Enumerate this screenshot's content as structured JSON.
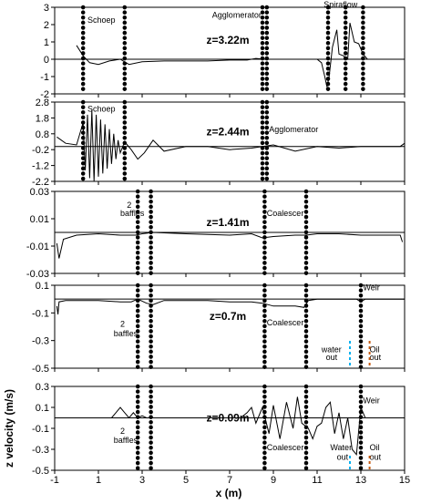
{
  "chart_data": {
    "type": "line",
    "xlabel": "x (m)",
    "ylabel": "z velocity (m/s)",
    "xlim": [
      -1,
      15
    ],
    "xticks": [
      "-1",
      "1",
      "3",
      "5",
      "7",
      "9",
      "11",
      "13",
      "15"
    ],
    "panels": [
      {
        "label": "z=3.22m",
        "ylim": [
          -2,
          3
        ],
        "yticks": [
          "-2",
          "-1",
          "0",
          "1",
          "2",
          "3"
        ],
        "dotted_lines": [
          0.3,
          2.2,
          8.5,
          8.7,
          11.5,
          12.3,
          13.1
        ],
        "annotations": [
          {
            "text": "Schoep",
            "x": 0.5,
            "y": 2.1
          },
          {
            "text": "Agglomerator",
            "x": 6.2,
            "y": 2.4
          },
          {
            "text": "Spiraflow",
            "x": 11.3,
            "y": 3.0
          }
        ],
        "series": [
          {
            "x": [
              0.0,
              0.3,
              0.6,
              1.0,
              1.5,
              2.0,
              2.4,
              3.0,
              4.0,
              5.0,
              6.0,
              7.0,
              7.8,
              8.2,
              8.6,
              9.0,
              10.0,
              11.0,
              11.2,
              11.35,
              11.45,
              11.55,
              11.7,
              11.9,
              12.0,
              12.2,
              12.4,
              12.5,
              12.7,
              12.9,
              13.1,
              13.3
            ],
            "y": [
              0.8,
              0.2,
              -0.2,
              -0.3,
              -0.1,
              0.0,
              -0.3,
              -0.15,
              -0.1,
              -0.1,
              -0.1,
              -0.05,
              -0.05,
              0.05,
              0.0,
              0.0,
              0.0,
              0.0,
              -0.2,
              -1.0,
              -1.6,
              -1.0,
              0.7,
              1.7,
              0.3,
              0.2,
              0.0,
              2.1,
              1.0,
              0.9,
              0.3,
              0.0
            ]
          }
        ]
      },
      {
        "label": "z=2.44m",
        "ylim": [
          -2.2,
          2.8
        ],
        "yticks": [
          "-2.2",
          "-1.2",
          "-0.2",
          "0.8",
          "1.8",
          "2.8"
        ],
        "dotted_lines": [
          0.3,
          2.2,
          8.5,
          8.7
        ],
        "annotations": [
          {
            "text": "Schoep",
            "x": 0.5,
            "y": 2.2
          },
          {
            "text": "Agglomerator",
            "x": 8.8,
            "y": 0.9
          }
        ],
        "series": [
          {
            "x": [
              -0.9,
              -0.5,
              0.0,
              0.3,
              0.4,
              0.5,
              0.6,
              0.7,
              0.8,
              0.9,
              1.0,
              1.1,
              1.2,
              1.3,
              1.4,
              1.5,
              1.6,
              1.7,
              1.8,
              1.9,
              2.0,
              2.2,
              2.5,
              2.8,
              3.1,
              3.5,
              4.0,
              5.0,
              6.0,
              7.0,
              8.0,
              9.0,
              10.0,
              11.0,
              12.0,
              13.0,
              14.0,
              14.8,
              15.0
            ],
            "y": [
              0.6,
              0.2,
              0.1,
              1.5,
              -1.5,
              2.0,
              -2.0,
              2.3,
              -2.2,
              2.0,
              -1.9,
              1.7,
              -1.7,
              1.4,
              -1.4,
              1.1,
              -1.1,
              0.8,
              -0.8,
              0.4,
              -0.4,
              0.3,
              -0.2,
              -0.8,
              -0.4,
              0.4,
              -0.3,
              0.0,
              0.0,
              -0.2,
              -0.1,
              0.1,
              -0.3,
              0.0,
              -0.1,
              0.0,
              0.0,
              0.0,
              0.2
            ]
          }
        ]
      },
      {
        "label": "z=1.41m",
        "ylim": [
          -0.03,
          0.03
        ],
        "yticks": [
          "-0.03",
          "-0.01",
          "0.01",
          "0.03"
        ],
        "dotted_lines": [
          2.8,
          3.4,
          8.6,
          10.5
        ],
        "annotations": [
          {
            "text": "2",
            "x": 2.3,
            "y": 0.018
          },
          {
            "text": "baffles",
            "x": 2.0,
            "y": 0.012
          },
          {
            "text": "Coalescer",
            "x": 8.7,
            "y": 0.012
          }
        ],
        "series": [
          {
            "x": [
              -0.9,
              -0.8,
              -0.6,
              0.0,
              1.0,
              2.0,
              2.7,
              3.0,
              3.5,
              5.0,
              7.0,
              8.0,
              8.5,
              9.0,
              10.0,
              10.5,
              11.0,
              12.0,
              13.0,
              14.0,
              14.8,
              14.9
            ],
            "y": [
              -0.008,
              -0.019,
              -0.005,
              -0.002,
              -0.001,
              -0.002,
              -0.002,
              -0.001,
              0.0,
              -0.001,
              -0.002,
              -0.001,
              -0.004,
              -0.003,
              -0.002,
              -0.002,
              -0.001,
              -0.001,
              -0.002,
              -0.002,
              -0.002,
              -0.007
            ]
          }
        ]
      },
      {
        "label": "z=0.7m",
        "ylim": [
          -0.5,
          0.1
        ],
        "yticks": [
          "-0.5",
          "-0.3",
          "-0.1",
          "0.1"
        ],
        "dotted_lines": [
          2.8,
          3.4,
          8.6,
          10.5,
          13.0
        ],
        "annotations": [
          {
            "text": "2",
            "x": 2.0,
            "y": -0.2
          },
          {
            "text": "baffles",
            "x": 1.7,
            "y": -0.27
          },
          {
            "text": "Coalescer",
            "x": 8.7,
            "y": -0.19
          },
          {
            "text": "Weir",
            "x": 13.1,
            "y": 0.065
          },
          {
            "text": "water",
            "x": 11.2,
            "y": -0.385
          },
          {
            "text": "out",
            "x": 11.4,
            "y": -0.44
          },
          {
            "text": "Oil",
            "x": 13.4,
            "y": -0.385
          },
          {
            "text": "out",
            "x": 13.4,
            "y": -0.44
          }
        ],
        "series": [
          {
            "x": [
              -0.9,
              -0.85,
              -0.8,
              -0.5,
              0.0,
              1.0,
              2.0,
              2.5,
              2.8,
              3.2,
              3.5,
              4.0,
              5.0,
              6.0,
              7.0,
              8.0,
              8.5,
              9.0,
              10.0,
              10.4,
              10.6,
              11.0,
              12.0,
              12.8,
              13.0,
              13.2,
              13.5,
              14.0,
              15.0
            ],
            "y": [
              -0.05,
              -0.11,
              -0.02,
              -0.01,
              -0.01,
              -0.01,
              -0.02,
              -0.02,
              0.0,
              -0.03,
              -0.04,
              -0.01,
              -0.01,
              -0.01,
              -0.02,
              -0.02,
              -0.03,
              -0.05,
              -0.05,
              -0.06,
              -0.01,
              0.0,
              0.0,
              0.0,
              -0.02,
              0.0,
              0.0,
              0.0,
              0.0
            ]
          }
        ]
      },
      {
        "label": "z=0.09m",
        "ylim": [
          -0.5,
          0.3
        ],
        "yticks": [
          "-0.5",
          "-0.3",
          "-0.1",
          "0.1",
          "0.3"
        ],
        "dotted_lines": [
          2.8,
          3.4,
          8.6,
          10.5,
          13.0
        ],
        "annotations": [
          {
            "text": "2",
            "x": 2.0,
            "y": -0.15
          },
          {
            "text": "baffles",
            "x": 1.7,
            "y": -0.24
          },
          {
            "text": "Coalescer",
            "x": 8.7,
            "y": -0.31
          },
          {
            "text": "Water",
            "x": 11.6,
            "y": -0.31
          },
          {
            "text": "out",
            "x": 11.9,
            "y": -0.4
          },
          {
            "text": "Weir",
            "x": 13.1,
            "y": 0.14
          },
          {
            "text": "Oil",
            "x": 13.4,
            "y": -0.31
          },
          {
            "text": "out",
            "x": 13.4,
            "y": -0.4
          }
        ],
        "series": [
          {
            "x": [
              1.6,
              1.8,
              2.0,
              2.2,
              2.4,
              2.6,
              2.8,
              3.0,
              3.2,
              3.4,
              3.6,
              4.0,
              5.0,
              6.0,
              7.0,
              7.5,
              7.8,
              8.0,
              8.2,
              8.5,
              8.8,
              9.0,
              9.3,
              9.6,
              9.9,
              10.1,
              10.3,
              10.6,
              10.8,
              11.0,
              11.2,
              11.4,
              11.6,
              11.8,
              12.0,
              12.2,
              12.4,
              12.6,
              12.8,
              13.0,
              13.2,
              13.5,
              14.0
            ],
            "y": [
              0.0,
              0.05,
              0.1,
              0.05,
              0.0,
              0.05,
              0.0,
              0.02,
              0.0,
              0.0,
              0.0,
              0.0,
              0.0,
              0.0,
              0.0,
              0.0,
              0.05,
              0.1,
              -0.05,
              0.1,
              -0.15,
              0.12,
              -0.2,
              0.15,
              -0.1,
              0.2,
              -0.05,
              -0.1,
              -0.2,
              -0.08,
              -0.05,
              0.1,
              0.15,
              -0.15,
              0.05,
              -0.2,
              0.0,
              -0.3,
              -0.35,
              0.1,
              0.0,
              0.0,
              0.0
            ]
          }
        ]
      }
    ]
  },
  "colors": {
    "line": "#000000",
    "water_marker": "#00b0f0",
    "oil_marker": "#c55a11"
  }
}
